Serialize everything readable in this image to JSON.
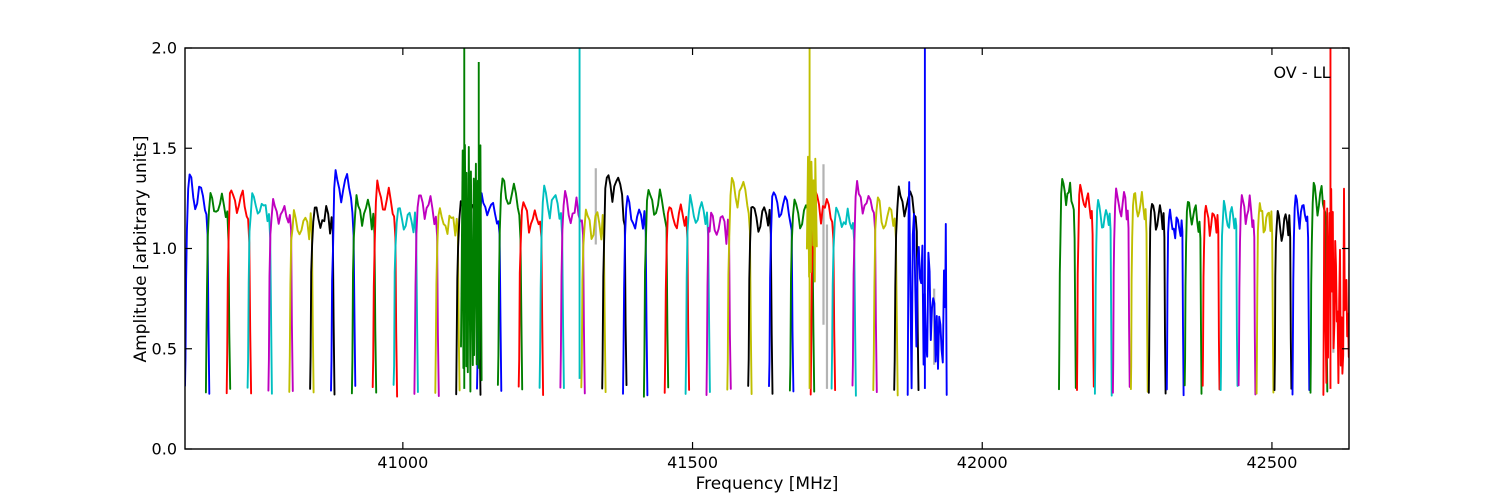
{
  "figure": {
    "background": "#ffffff"
  },
  "chart_data": {
    "type": "line",
    "title": "",
    "xlabel": "Frequency [MHz]",
    "ylabel": "Amplitude [arbitrary units]",
    "annotation": {
      "text": "OV - LL"
    },
    "xlim": [
      40624,
      42633
    ],
    "ylim": [
      0.0,
      2.0
    ],
    "xticks": [
      41000,
      41500,
      42000,
      42500
    ],
    "xtick_labels": [
      "41000",
      "41500",
      "42000",
      "42500"
    ],
    "yticks": [
      0.0,
      0.5,
      1.0,
      1.5,
      2.0
    ],
    "ytick_labels": [
      "0.0",
      "0.5",
      "1.0",
      "1.5",
      "2.0"
    ],
    "grid": false,
    "legend": "none",
    "color_cycle": [
      "#0000ff",
      "#007f00",
      "#ff0000",
      "#00bfbf",
      "#bf00bf",
      "#bfbf00",
      "#000000"
    ],
    "gray_color": "#b3b3b3",
    "baseline_amplitude": 0.27,
    "sections": [
      {
        "name": "lower-band-subbands",
        "start_mhz": 40645,
        "spacing_mhz": 36,
        "width_mhz": 42,
        "count": 36,
        "first_color_index": 0,
        "peaks": [
          1.38,
          1.3,
          1.32,
          1.29,
          1.27,
          1.21,
          1.24,
          1.4,
          1.27,
          1.34,
          1.24,
          1.3,
          1.22,
          1.26,
          1.29,
          1.36,
          1.26,
          1.33,
          1.28,
          1.22,
          1.4,
          1.26,
          1.31,
          1.24,
          1.27,
          1.21,
          1.38,
          1.25,
          1.31,
          1.27,
          1.3,
          1.23,
          1.33,
          1.26,
          1.32,
          1.34
        ]
      },
      {
        "name": "upper-band-subbands",
        "start_mhz": 42147,
        "spacing_mhz": 31,
        "width_mhz": 29,
        "count": 16,
        "first_color_index": 1,
        "peaks": [
          1.36,
          1.33,
          1.26,
          1.32,
          1.3,
          1.24,
          1.21,
          1.25,
          1.23,
          1.26,
          1.28,
          1.25,
          1.21,
          1.27,
          1.34,
          1.34
        ]
      }
    ],
    "gap_mhz": [
      41930,
      42130
    ],
    "noisy_subbands": [
      {
        "section": 0,
        "index": 35,
        "center_mhz": 41905,
        "amp_range": [
          0.25,
          1.35
        ]
      },
      {
        "section": 1,
        "index": 15,
        "center_mhz": 42612,
        "amp_range": [
          0.25,
          1.35
        ]
      }
    ],
    "spikes": [
      {
        "freq_mhz": 41106,
        "color_index": 1,
        "bottom": 0.3,
        "top": 2.0
      },
      {
        "freq_mhz": 41131,
        "color_index": 1,
        "bottom": 0.4,
        "top": 1.93
      },
      {
        "freq_mhz": 41305,
        "color_index": 3,
        "bottom": 0.35,
        "top": 2.0
      },
      {
        "freq_mhz": 41702,
        "color_index": 5,
        "bottom": 0.3,
        "top": 2.0
      },
      {
        "freq_mhz": 41901,
        "color_index": 0,
        "bottom": 0.3,
        "top": 2.0
      },
      {
        "freq_mhz": 42601,
        "color_index": 2,
        "bottom": 0.3,
        "top": 2.0
      }
    ],
    "noise_clusters": [
      {
        "center_mhz": 41118,
        "span_mhz": 34,
        "color_index": 1,
        "min_amp": 0.28,
        "max_amp": 1.52,
        "strokes": 18,
        "seed": 5
      },
      {
        "center_mhz": 41706,
        "span_mhz": 16,
        "color_index": 5,
        "min_amp": 0.82,
        "max_amp": 1.47,
        "strokes": 10,
        "seed": 9
      }
    ],
    "gray_segments": [
      {
        "freq_mhz": 41118,
        "a0": 0.6,
        "a1": 1.2
      },
      {
        "freq_mhz": 41333,
        "a0": 1.02,
        "a1": 1.4
      },
      {
        "freq_mhz": 41726,
        "a0": 0.62,
        "a1": 1.42
      },
      {
        "freq_mhz": 41732,
        "a0": 0.3,
        "a1": 1.12
      },
      {
        "freq_mhz": 41917,
        "a0": 0.42,
        "a1": 0.8
      },
      {
        "freq_mhz": 42606,
        "a0": 0.48,
        "a1": 0.95
      }
    ]
  }
}
